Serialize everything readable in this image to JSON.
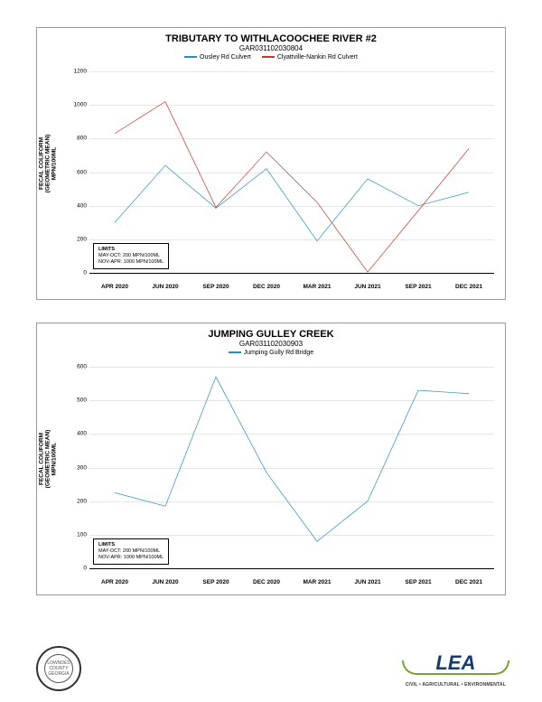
{
  "chart1": {
    "type": "line",
    "title": "TRIBUTARY TO WITHLACOOCHEE RIVER #2",
    "subtitle": "GAR031102030804",
    "ylabel": "FECAL COLIFORM\n(GEOMETRIC MEAN)\nMPN/100ML",
    "ylim": [
      0,
      1200
    ],
    "ytick_step": 200,
    "categories": [
      "APR 2020",
      "JUN 2020",
      "SEP 2020",
      "DEC 2020",
      "MAR 2021",
      "JUN 2021",
      "SEP 2021",
      "DEC 2021"
    ],
    "series": [
      {
        "name": "Ousley Rd Culvert",
        "color": "#2e8bc0",
        "values": [
          300,
          640,
          385,
          620,
          190,
          560,
          400,
          480
        ]
      },
      {
        "name": "Clyattville-Nankin Rd Culvert",
        "color": "#c0392b",
        "values": [
          830,
          1020,
          390,
          720,
          420,
          5,
          370,
          740
        ]
      }
    ],
    "limits_header": "LIMITS",
    "limits_line1": "MAY-OCT: 200 MPN/100ML",
    "limits_line2": "NOV-APR: 1000 MPN/100ML",
    "grid_color": "#e5e5e5",
    "background_color": "#ffffff"
  },
  "chart2": {
    "type": "line",
    "title": "JUMPING GULLEY CREEK",
    "subtitle": "GAR031102030903",
    "ylabel": "FECAL COLIFORM\n(GEOMETRIC MEAN)\nMPN/100ML",
    "ylim": [
      0,
      600
    ],
    "ytick_step": 100,
    "categories": [
      "APR 2020",
      "JUN 2020",
      "SEP 2020",
      "DEC 2020",
      "MAR 2021",
      "JUN 2021",
      "SEP 2021",
      "DEC 2021"
    ],
    "series": [
      {
        "name": "Jumping Gully Rd Bridge",
        "color": "#2e8bc0",
        "values": [
          225,
          185,
          570,
          285,
          80,
          200,
          530,
          520
        ]
      }
    ],
    "limits_header": "LIMITS",
    "limits_line1": "MAY-OCT: 200 MPN/100ML",
    "limits_line2": "NOV-APR: 1000 MPN/100ML",
    "grid_color": "#e5e5e5",
    "background_color": "#ffffff"
  },
  "footer": {
    "seal_label": "LOWNDES COUNTY GEORGIA",
    "lea_title": "LEA",
    "lea_sub": "CIVIL • AGRICULTURAL • ENVIRONMENTAL"
  }
}
